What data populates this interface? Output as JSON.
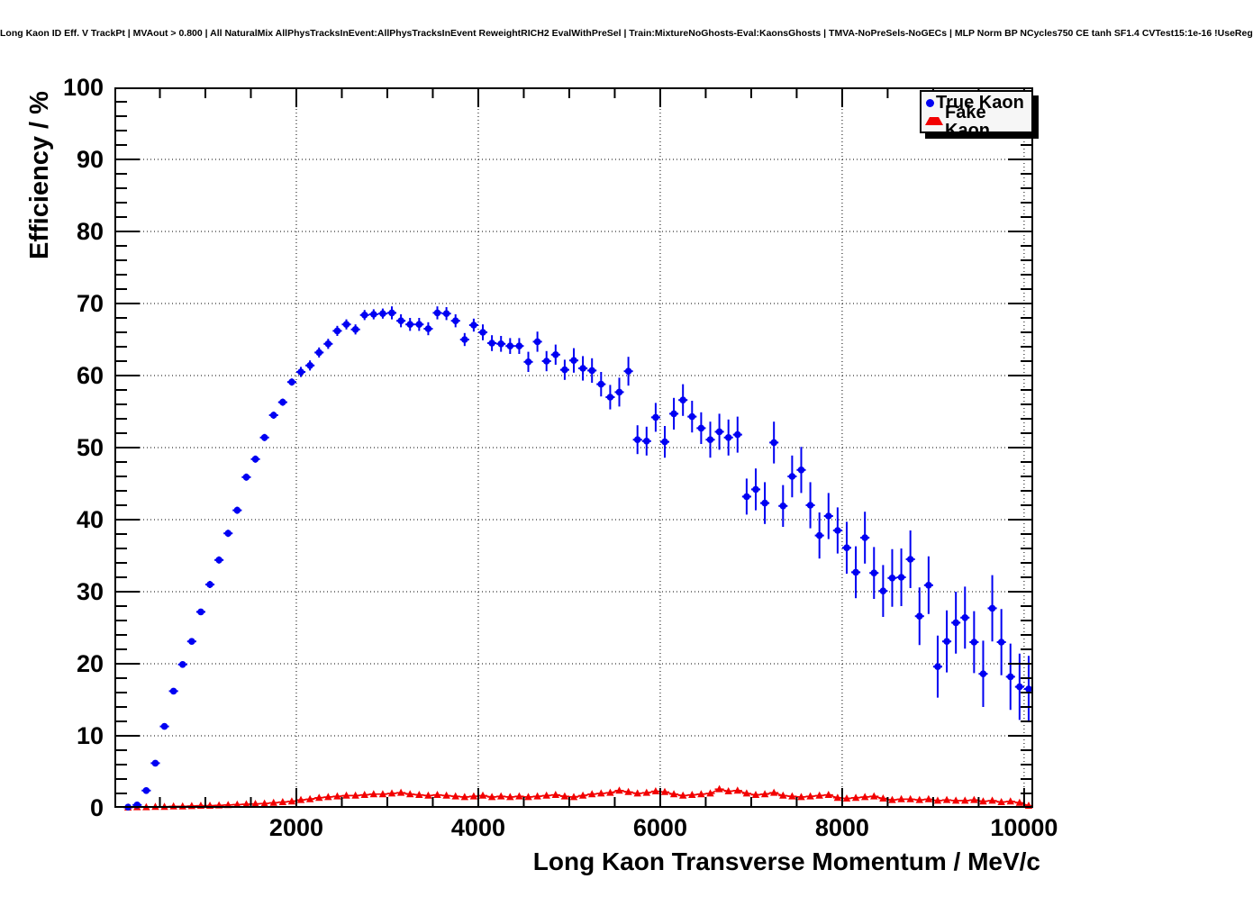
{
  "title": "Long Kaon ID Eff. V TrackPt | MVAout > 0.800 | All NaturalMix AllPhysTracksInEvent:AllPhysTracksInEvent ReweightRICH2 EvalWithPreSel | Train:MixtureNoGhosts-Eval:KaonsGhosts | TMVA-NoPreSels-NoGECs | MLP Norm BP NCycles750 CE tanh SF1.4 CVTest15:1e-16 !UseReg",
  "axes": {
    "x": {
      "label": "Long Kaon Transverse Momentum / MeV/c",
      "major": [
        2000,
        4000,
        6000,
        8000,
        10000
      ],
      "major_step": 2000,
      "minor_step": 500
    },
    "y": {
      "label": "Efficiency / %",
      "major": [
        0,
        10,
        20,
        30,
        40,
        50,
        60,
        70,
        80,
        90,
        100
      ],
      "major_step": 10,
      "minor_step": 2
    }
  },
  "legend": {
    "items": [
      {
        "label": "True Kaon",
        "marker": "circle",
        "color": "#0000f2"
      },
      {
        "label": "Fake Kaon",
        "marker": "triangle",
        "color": "#f20000"
      }
    ]
  },
  "chart_data": {
    "type": "scatter",
    "title": "Long Kaon ID Eff. V TrackPt | MVAout > 0.800 | All NaturalMix AllPhysTracksInEvent:AllPhysTracksInEvent ReweightRICH2 EvalWithPreSel | Train:MixtureNoGhosts-Eval:KaonsGhosts | TMVA-NoPreSels-NoGECs | MLP Norm BP NCycles750 CE tanh SF1.4 CVTest15:1e-16 !UseReg",
    "xlabel": "Long Kaon Transverse Momentum / MeV/c",
    "ylabel": "Efficiency / %",
    "xlim": [
      0,
      10100
    ],
    "ylim": [
      0,
      100
    ],
    "grid": true,
    "grid_style": "dotted",
    "legend_position": "top-right",
    "x_bin_halfwidth": 50,
    "x": [
      150,
      250,
      350,
      450,
      550,
      650,
      750,
      850,
      950,
      1050,
      1150,
      1250,
      1350,
      1450,
      1550,
      1650,
      1750,
      1850,
      1950,
      2050,
      2150,
      2250,
      2350,
      2450,
      2550,
      2650,
      2750,
      2850,
      2950,
      3050,
      3150,
      3250,
      3350,
      3450,
      3550,
      3650,
      3750,
      3850,
      3950,
      4050,
      4150,
      4250,
      4350,
      4450,
      4550,
      4650,
      4750,
      4850,
      4950,
      5050,
      5150,
      5250,
      5350,
      5450,
      5550,
      5650,
      5750,
      5850,
      5950,
      6050,
      6150,
      6250,
      6350,
      6450,
      6550,
      6650,
      6750,
      6850,
      6950,
      7050,
      7150,
      7250,
      7350,
      7450,
      7550,
      7650,
      7750,
      7850,
      7950,
      8050,
      8150,
      8250,
      8350,
      8450,
      8550,
      8650,
      8750,
      8850,
      8950,
      9050,
      9150,
      9250,
      9350,
      9450,
      9550,
      9650,
      9750,
      9850,
      9950,
      10050
    ],
    "series": [
      {
        "name": "True Kaon",
        "color": "#0000f2",
        "marker": "circle",
        "values": [
          0.1,
          0.4,
          2.4,
          6.2,
          11.3,
          16.2,
          19.9,
          23.1,
          27.2,
          31.0,
          34.4,
          38.1,
          41.3,
          45.9,
          48.4,
          51.4,
          54.5,
          56.3,
          59.1,
          60.5,
          61.4,
          63.2,
          64.4,
          66.2,
          67.1,
          66.4,
          68.4,
          68.5,
          68.6,
          68.7,
          67.6,
          67.1,
          67.1,
          66.5,
          68.7,
          68.6,
          67.6,
          65.0,
          67.0,
          66.0,
          64.5,
          64.4,
          64.1,
          64.1,
          61.9,
          64.7,
          62.0,
          62.9,
          60.8,
          62.1,
          61.0,
          60.7,
          58.8,
          57.0,
          57.7,
          60.6,
          51.1,
          50.9,
          54.2,
          50.8,
          54.7,
          56.6,
          54.3,
          52.7,
          51.1,
          52.2,
          51.4,
          51.8,
          43.2,
          44.2,
          42.3,
          50.7,
          41.9,
          46.0,
          46.9,
          42.0,
          37.8,
          40.5,
          38.5,
          36.1,
          32.7,
          37.5,
          32.6,
          30.1,
          31.9,
          32.0,
          34.5,
          26.6,
          30.9,
          19.6,
          23.1,
          25.7,
          26.4,
          23.0,
          18.6,
          27.7,
          23.0,
          18.2,
          16.8,
          16.5
        ],
        "yerr": [
          0.4,
          0.4,
          0.4,
          0.4,
          0.4,
          0.4,
          0.4,
          0.4,
          0.4,
          0.5,
          0.5,
          0.5,
          0.5,
          0.5,
          0.5,
          0.5,
          0.5,
          0.5,
          0.5,
          0.7,
          0.7,
          0.7,
          0.7,
          0.7,
          0.7,
          0.7,
          0.7,
          0.7,
          0.7,
          0.9,
          0.9,
          0.9,
          0.9,
          0.9,
          0.9,
          0.9,
          0.9,
          0.9,
          0.9,
          1.1,
          1.1,
          1.1,
          1.1,
          1.1,
          1.4,
          1.4,
          1.4,
          1.4,
          1.4,
          1.7,
          1.7,
          1.7,
          1.7,
          1.7,
          2.0,
          2.0,
          2.0,
          2.0,
          2.0,
          2.2,
          2.2,
          2.2,
          2.2,
          2.2,
          2.5,
          2.5,
          2.5,
          2.5,
          2.5,
          2.9,
          2.9,
          2.9,
          2.9,
          2.9,
          3.2,
          3.2,
          3.2,
          3.2,
          3.2,
          3.6,
          3.6,
          3.6,
          3.6,
          3.6,
          4.0,
          4.0,
          4.0,
          4.0,
          4.0,
          4.3,
          4.3,
          4.3,
          4.3,
          4.3,
          4.6,
          4.6,
          4.6,
          4.6,
          4.6,
          4.6
        ]
      },
      {
        "name": "Fake Kaon",
        "color": "#f20000",
        "marker": "triangle",
        "values": [
          0.05,
          0.1,
          0.1,
          0.15,
          0.15,
          0.2,
          0.2,
          0.25,
          0.3,
          0.3,
          0.35,
          0.4,
          0.45,
          0.5,
          0.55,
          0.6,
          0.7,
          0.8,
          0.9,
          1.1,
          1.2,
          1.4,
          1.5,
          1.6,
          1.7,
          1.7,
          1.8,
          1.9,
          1.9,
          2.0,
          2.1,
          1.9,
          1.8,
          1.7,
          1.8,
          1.7,
          1.6,
          1.5,
          1.6,
          1.7,
          1.5,
          1.6,
          1.5,
          1.6,
          1.5,
          1.6,
          1.7,
          1.8,
          1.6,
          1.5,
          1.7,
          1.9,
          2.0,
          2.1,
          2.4,
          2.2,
          2.0,
          2.1,
          2.3,
          2.2,
          1.9,
          1.7,
          1.8,
          1.9,
          2.0,
          2.6,
          2.3,
          2.4,
          2.0,
          1.8,
          1.9,
          2.1,
          1.7,
          1.6,
          1.5,
          1.6,
          1.7,
          1.8,
          1.4,
          1.3,
          1.4,
          1.5,
          1.6,
          1.3,
          1.1,
          1.2,
          1.2,
          1.1,
          1.2,
          1.0,
          1.1,
          1.0,
          1.0,
          1.1,
          0.9,
          1.0,
          0.8,
          0.9,
          0.7,
          0.3
        ],
        "yerr": [
          0.05,
          0.05,
          0.05,
          0.05,
          0.05,
          0.05,
          0.05,
          0.05,
          0.05,
          0.05,
          0.05,
          0.05,
          0.05,
          0.05,
          0.05,
          0.05,
          0.05,
          0.05,
          0.05,
          0.05,
          0.1,
          0.1,
          0.1,
          0.1,
          0.1,
          0.1,
          0.1,
          0.1,
          0.1,
          0.1,
          0.1,
          0.1,
          0.1,
          0.1,
          0.1,
          0.1,
          0.1,
          0.1,
          0.1,
          0.1,
          0.1,
          0.1,
          0.1,
          0.1,
          0.1,
          0.1,
          0.1,
          0.1,
          0.1,
          0.1,
          0.2,
          0.2,
          0.2,
          0.2,
          0.2,
          0.2,
          0.2,
          0.2,
          0.2,
          0.2,
          0.2,
          0.2,
          0.2,
          0.2,
          0.2,
          0.2,
          0.2,
          0.2,
          0.2,
          0.2,
          0.2,
          0.2,
          0.2,
          0.2,
          0.2,
          0.2,
          0.2,
          0.2,
          0.2,
          0.2,
          0.25,
          0.25,
          0.25,
          0.25,
          0.25,
          0.25,
          0.25,
          0.25,
          0.25,
          0.25,
          0.25,
          0.25,
          0.25,
          0.25,
          0.25,
          0.25,
          0.25,
          0.25,
          0.25,
          0.25
        ]
      }
    ]
  }
}
